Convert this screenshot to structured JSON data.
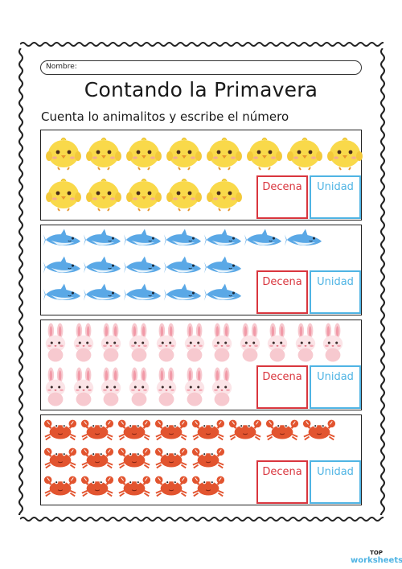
{
  "header": {
    "name_label": "Nombre:"
  },
  "title": "Contando la Primavera",
  "subtitle": "Cuenta lo animalitos y escribe el número",
  "sections": [
    {
      "animal": "chick-icon",
      "rows": [
        8,
        5
      ],
      "decena_label": "Decena",
      "unidad_label": "Unidad"
    },
    {
      "animal": "shark-icon",
      "rows": [
        7,
        5,
        5
      ],
      "decena_label": "Decena",
      "unidad_label": "Unidad"
    },
    {
      "animal": "bunny-icon",
      "rows": [
        11,
        7
      ],
      "decena_label": "Decena",
      "unidad_label": "Unidad"
    },
    {
      "animal": "crab-icon",
      "rows": [
        8,
        5,
        5
      ],
      "decena_label": "Decena",
      "unidad_label": "Unidad"
    }
  ],
  "colors": {
    "decena": "#d9363e",
    "unidad": "#4fb4e4",
    "chick": "#f9d94a",
    "shark": "#5aa8e6",
    "bunny": "#f7c9cf",
    "crab": "#e2542f"
  },
  "logo": {
    "top": "TOP",
    "bottom": "worksheets"
  }
}
